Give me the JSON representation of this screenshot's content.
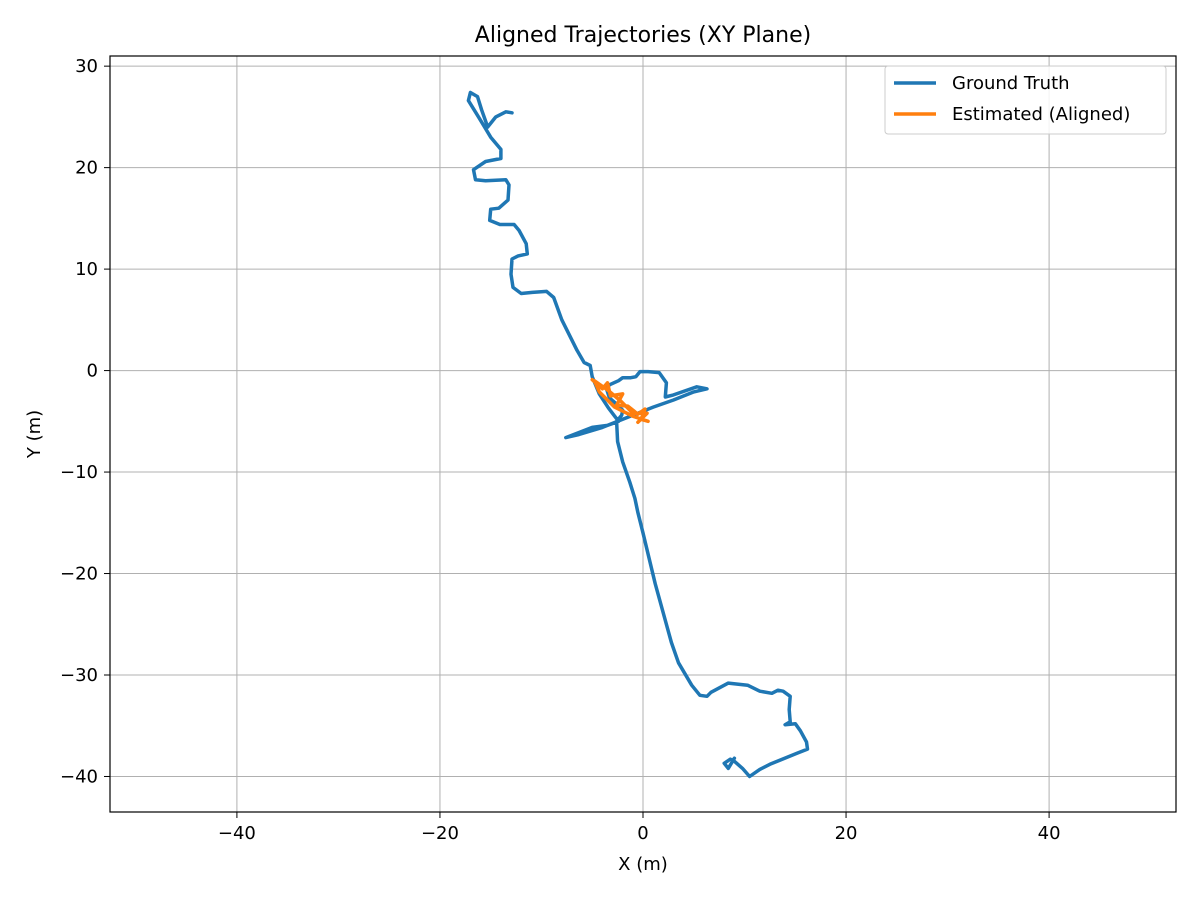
{
  "chart_data": {
    "type": "line",
    "title": "Aligned Trajectories (XY Plane)",
    "xlabel": "X (m)",
    "ylabel": "Y (m)",
    "xlim": [
      -52.5,
      52.5
    ],
    "ylim": [
      -43.5,
      31.0
    ],
    "xticks": [
      -40,
      -20,
      0,
      20,
      40
    ],
    "yticks": [
      -40,
      -30,
      -20,
      -10,
      0,
      10,
      20,
      30
    ],
    "xtick_labels": [
      "−40",
      "−20",
      "0",
      "20",
      "40"
    ],
    "ytick_labels": [
      "−40",
      "−30",
      "−20",
      "−10",
      "0",
      "10",
      "20",
      "30"
    ],
    "grid": true,
    "legend_position": "top-right",
    "series": [
      {
        "name": "Ground Truth",
        "color": "#1f77b4",
        "points": [
          [
            -12.9,
            25.4
          ],
          [
            -13.5,
            25.5
          ],
          [
            -14.5,
            25.0
          ],
          [
            -15.3,
            24.0
          ],
          [
            -15.9,
            25.7
          ],
          [
            -16.3,
            27.0
          ],
          [
            -17.0,
            27.4
          ],
          [
            -17.2,
            26.6
          ],
          [
            -16.2,
            25.0
          ],
          [
            -15.0,
            23.0
          ],
          [
            -14.0,
            21.8
          ],
          [
            -14.0,
            20.9
          ],
          [
            -15.5,
            20.6
          ],
          [
            -16.7,
            19.8
          ],
          [
            -16.5,
            18.8
          ],
          [
            -15.5,
            18.7
          ],
          [
            -13.5,
            18.8
          ],
          [
            -13.2,
            18.3
          ],
          [
            -13.3,
            16.8
          ],
          [
            -14.2,
            16.0
          ],
          [
            -15.0,
            15.9
          ],
          [
            -15.1,
            14.8
          ],
          [
            -14.1,
            14.4
          ],
          [
            -12.7,
            14.4
          ],
          [
            -12.2,
            13.8
          ],
          [
            -11.5,
            12.5
          ],
          [
            -11.4,
            11.5
          ],
          [
            -12.3,
            11.3
          ],
          [
            -12.9,
            11.0
          ],
          [
            -13.0,
            9.5
          ],
          [
            -12.8,
            8.2
          ],
          [
            -12.0,
            7.6
          ],
          [
            -10.9,
            7.7
          ],
          [
            -9.5,
            7.8
          ],
          [
            -8.8,
            7.2
          ],
          [
            -8.0,
            5.0
          ],
          [
            -6.5,
            2.0
          ],
          [
            -5.8,
            0.8
          ],
          [
            -5.2,
            0.5
          ],
          [
            -5.0,
            -0.6
          ],
          [
            -4.3,
            -2.3
          ],
          [
            -3.4,
            -3.7
          ],
          [
            -2.4,
            -5.0
          ],
          [
            -3.5,
            -5.4
          ],
          [
            -5.0,
            -5.6
          ],
          [
            -7.6,
            -6.6
          ],
          [
            -6.3,
            -6.3
          ],
          [
            -4.0,
            -5.6
          ],
          [
            -1.0,
            -4.4
          ],
          [
            1.0,
            -3.6
          ],
          [
            3.0,
            -2.9
          ],
          [
            5.0,
            -2.1
          ],
          [
            6.3,
            -1.8
          ],
          [
            5.3,
            -1.6
          ],
          [
            3.0,
            -2.4
          ],
          [
            2.2,
            -2.6
          ],
          [
            2.3,
            -1.2
          ],
          [
            1.6,
            -0.2
          ],
          [
            0.5,
            -0.1
          ],
          [
            -0.3,
            -0.1
          ],
          [
            -0.7,
            -0.6
          ],
          [
            -1.2,
            -0.7
          ],
          [
            -2.0,
            -0.7
          ],
          [
            -2.4,
            -1.0
          ],
          [
            -3.3,
            -1.4
          ],
          [
            -3.6,
            -1.8
          ],
          [
            -3.3,
            -2.7
          ],
          [
            -2.6,
            -3.3
          ],
          [
            -2.0,
            -3.9
          ],
          [
            -2.1,
            -4.4
          ],
          [
            -2.6,
            -5.0
          ],
          [
            -2.5,
            -7.0
          ],
          [
            -2.0,
            -9.0
          ],
          [
            -1.3,
            -11.0
          ],
          [
            -0.8,
            -12.6
          ],
          [
            -0.5,
            -14.0
          ],
          [
            0.0,
            -16.0
          ],
          [
            1.2,
            -21.0
          ],
          [
            2.8,
            -26.8
          ],
          [
            3.5,
            -28.8
          ],
          [
            4.8,
            -31.0
          ],
          [
            5.6,
            -32.0
          ],
          [
            6.3,
            -32.1
          ],
          [
            6.7,
            -31.7
          ],
          [
            8.4,
            -30.8
          ],
          [
            10.3,
            -31.0
          ],
          [
            11.5,
            -31.6
          ],
          [
            12.7,
            -31.8
          ],
          [
            13.3,
            -31.5
          ],
          [
            13.8,
            -31.6
          ],
          [
            14.5,
            -32.1
          ],
          [
            14.4,
            -33.4
          ],
          [
            14.5,
            -34.6
          ],
          [
            14.0,
            -34.9
          ],
          [
            15.0,
            -34.8
          ],
          [
            15.5,
            -35.5
          ],
          [
            16.1,
            -36.6
          ],
          [
            16.2,
            -37.3
          ],
          [
            15.2,
            -37.7
          ],
          [
            12.5,
            -38.8
          ],
          [
            11.5,
            -39.3
          ],
          [
            10.5,
            -40.0
          ],
          [
            9.8,
            -39.2
          ],
          [
            9.0,
            -38.5
          ],
          [
            8.6,
            -38.3
          ],
          [
            8.0,
            -38.7
          ],
          [
            8.4,
            -39.2
          ],
          [
            9.0,
            -38.2
          ]
        ]
      },
      {
        "name": "Estimated (Aligned)",
        "color": "#ff7f0e",
        "points": [
          [
            -5.0,
            -0.9
          ],
          [
            -4.0,
            -1.8
          ],
          [
            -3.5,
            -1.2
          ],
          [
            -3.2,
            -2.5
          ],
          [
            -2.0,
            -2.3
          ],
          [
            -2.6,
            -3.4
          ],
          [
            -1.5,
            -3.5
          ],
          [
            -0.5,
            -4.3
          ],
          [
            0.2,
            -3.8
          ],
          [
            -0.2,
            -4.8
          ],
          [
            0.5,
            -5.0
          ],
          [
            -1.0,
            -4.5
          ],
          [
            -2.8,
            -3.6
          ],
          [
            -4.3,
            -2.1
          ],
          [
            -4.8,
            -1.0
          ],
          [
            -3.5,
            -1.9
          ],
          [
            -2.2,
            -3.0
          ],
          [
            -1.0,
            -4.2
          ],
          [
            0.4,
            -4.2
          ],
          [
            -0.5,
            -5.1
          ]
        ]
      }
    ]
  }
}
